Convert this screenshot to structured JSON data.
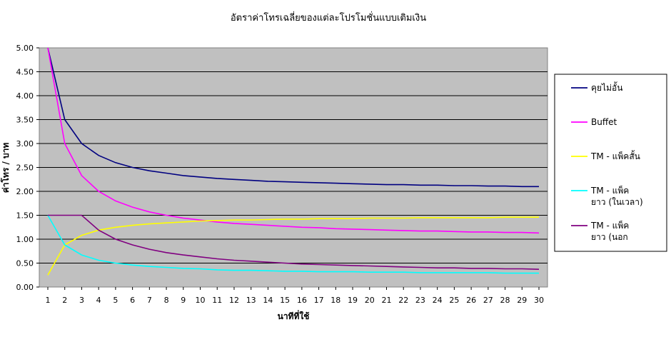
{
  "chart_data": {
    "type": "line",
    "title": "อัตราค่าโทรเฉลี่ยของแต่ละโปรโมชั่นแบบเติมเงิน",
    "xlabel": "นาทีที่ใช้",
    "ylabel": "ค่าโทร / บาท",
    "x": [
      1,
      2,
      3,
      4,
      5,
      6,
      7,
      8,
      9,
      10,
      11,
      12,
      13,
      14,
      15,
      16,
      17,
      18,
      19,
      20,
      21,
      22,
      23,
      24,
      25,
      26,
      27,
      28,
      29,
      30
    ],
    "xlim": [
      1,
      30
    ],
    "ylim": [
      0,
      5
    ],
    "yticks": [
      "0.00",
      "0.50",
      "1.00",
      "1.50",
      "2.00",
      "2.50",
      "3.00",
      "3.50",
      "4.00",
      "4.50",
      "5.00"
    ],
    "grid": true,
    "plot_background": "#c0c0c0",
    "legend_position": "right",
    "series": [
      {
        "name": "คุยไม่อั้น",
        "color": "#000080",
        "values": [
          5.0,
          3.5,
          3.0,
          2.75,
          2.6,
          2.5,
          2.43,
          2.38,
          2.33,
          2.3,
          2.27,
          2.25,
          2.23,
          2.21,
          2.2,
          2.19,
          2.18,
          2.17,
          2.16,
          2.15,
          2.14,
          2.14,
          2.13,
          2.13,
          2.12,
          2.12,
          2.11,
          2.11,
          2.1,
          2.1
        ]
      },
      {
        "name": "Buffet",
        "color": "#ff00ff",
        "values": [
          5.0,
          3.0,
          2.33,
          2.0,
          1.8,
          1.67,
          1.57,
          1.5,
          1.44,
          1.4,
          1.36,
          1.33,
          1.31,
          1.29,
          1.27,
          1.25,
          1.24,
          1.22,
          1.21,
          1.2,
          1.19,
          1.18,
          1.17,
          1.17,
          1.16,
          1.15,
          1.15,
          1.14,
          1.14,
          1.13
        ]
      },
      {
        "name": "TM - แพ็คสั้น",
        "color": "#ffff00",
        "values": [
          0.25,
          0.88,
          1.08,
          1.19,
          1.25,
          1.29,
          1.32,
          1.34,
          1.36,
          1.38,
          1.39,
          1.4,
          1.4,
          1.41,
          1.42,
          1.42,
          1.43,
          1.43,
          1.43,
          1.44,
          1.44,
          1.44,
          1.45,
          1.45,
          1.45,
          1.45,
          1.45,
          1.46,
          1.46,
          1.46
        ]
      },
      {
        "name": "TM - แพ็คยาว (ในเวลา)",
        "label_lines": [
          "TM - แพ็ค",
          "ยาว (ในเวลา)"
        ],
        "color": "#00ffff",
        "values": [
          1.5,
          0.88,
          0.67,
          0.56,
          0.5,
          0.46,
          0.43,
          0.41,
          0.39,
          0.38,
          0.36,
          0.35,
          0.35,
          0.34,
          0.33,
          0.33,
          0.32,
          0.32,
          0.32,
          0.31,
          0.31,
          0.31,
          0.3,
          0.3,
          0.3,
          0.3,
          0.3,
          0.29,
          0.29,
          0.29
        ]
      },
      {
        "name": "TM - แพ็คยาว (นอก",
        "label_lines": [
          "TM - แพ็ค",
          "ยาว (นอก"
        ],
        "color": "#800080",
        "values": [
          1.5,
          1.5,
          1.5,
          1.19,
          1.0,
          0.88,
          0.79,
          0.72,
          0.67,
          0.63,
          0.59,
          0.56,
          0.54,
          0.52,
          0.5,
          0.48,
          0.47,
          0.46,
          0.45,
          0.44,
          0.43,
          0.42,
          0.41,
          0.4,
          0.4,
          0.39,
          0.39,
          0.38,
          0.38,
          0.37
        ]
      }
    ]
  }
}
